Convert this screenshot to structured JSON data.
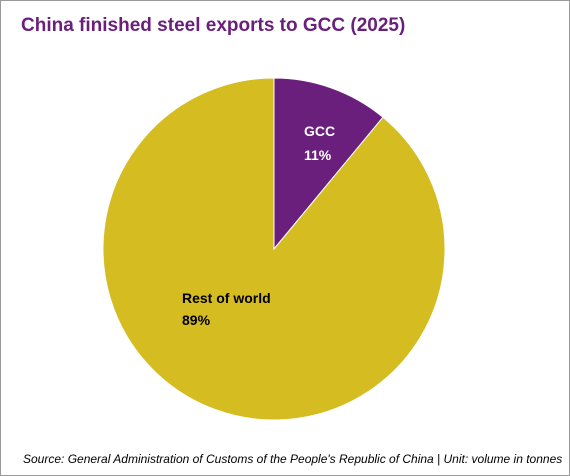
{
  "chart_data": {
    "type": "pie",
    "title": "China finished steel exports to GCC (2025)",
    "slices": [
      {
        "label": "GCC",
        "value": 11,
        "value_label": "11%",
        "color": "#6b1f7c",
        "label_color": "#ffffff"
      },
      {
        "label": "Rest of world",
        "value": 89,
        "value_label": "89%",
        "color": "#d4bc21",
        "label_color": "#000000"
      }
    ],
    "start_angle": "12 o'clock",
    "direction": "clockwise",
    "legend": "none",
    "source": "Source: General Administration of Customs of the People's Republic of China | Unit: volume in tonnes"
  }
}
